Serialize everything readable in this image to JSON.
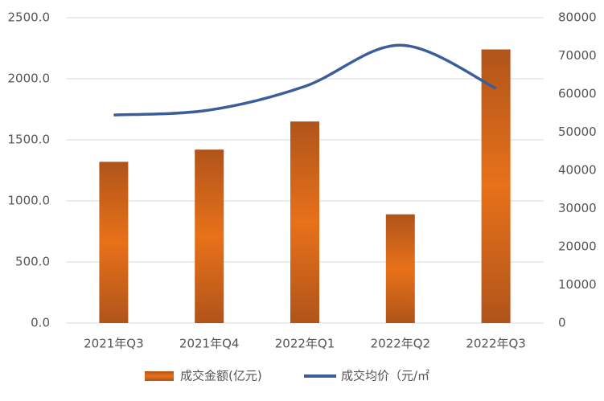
{
  "chart_data": {
    "type": "bar",
    "categories": [
      "2021年Q3",
      "2021年Q4",
      "2022年Q1",
      "2022年Q2",
      "2022年Q3"
    ],
    "series": [
      {
        "name": "成交金额(亿元)",
        "type": "bar",
        "color": "#e8711a",
        "values": [
          1320,
          1420,
          1650,
          890,
          2240
        ]
      },
      {
        "name": "成交均价（元/㎡",
        "type": "line",
        "axis": "y2",
        "color": "#3b5d99",
        "values": [
          54500,
          55800,
          62000,
          72800,
          61500
        ]
      }
    ],
    "ylim": [
      0,
      2500
    ],
    "yticks": [
      {
        "value": 0,
        "label": "0.0"
      },
      {
        "value": 500,
        "label": "500.0"
      },
      {
        "value": 1000,
        "label": "1000.0"
      },
      {
        "value": 1500,
        "label": "1500.0"
      },
      {
        "value": 2000,
        "label": "2000.0"
      },
      {
        "value": 2500,
        "label": "2500.0"
      }
    ],
    "y2lim": [
      0,
      80000
    ],
    "y2ticks": [
      0,
      10000,
      20000,
      30000,
      40000,
      50000,
      60000,
      70000,
      80000
    ],
    "grid": true
  }
}
